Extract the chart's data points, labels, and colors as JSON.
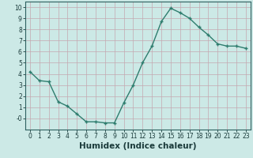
{
  "x": [
    0,
    1,
    2,
    3,
    4,
    5,
    6,
    7,
    8,
    9,
    10,
    11,
    12,
    13,
    14,
    15,
    16,
    17,
    18,
    19,
    20,
    21,
    22,
    23
  ],
  "y": [
    4.2,
    3.4,
    3.3,
    1.5,
    1.1,
    0.4,
    -0.3,
    -0.3,
    -0.4,
    -0.4,
    1.4,
    3.0,
    5.0,
    6.5,
    8.7,
    9.9,
    9.5,
    9.0,
    8.2,
    7.5,
    6.7,
    6.5,
    6.5,
    6.3
  ],
  "line_color": "#2e7d6e",
  "marker": "+",
  "marker_size": 3.5,
  "bg_color": "#cce9e6",
  "grid_color": "#c4a8b0",
  "xlabel": "Humidex (Indice chaleur)",
  "xlim": [
    -0.5,
    23.5
  ],
  "ylim": [
    -1.0,
    10.5
  ],
  "yticks": [
    0,
    1,
    2,
    3,
    4,
    5,
    6,
    7,
    8,
    9,
    10
  ],
  "ytick_labels": [
    "-0",
    "1",
    "2",
    "3",
    "4",
    "5",
    "6",
    "7",
    "8",
    "9",
    "10"
  ],
  "xticks": [
    0,
    1,
    2,
    3,
    4,
    5,
    6,
    7,
    8,
    9,
    10,
    11,
    12,
    13,
    14,
    15,
    16,
    17,
    18,
    19,
    20,
    21,
    22,
    23
  ],
  "tick_label_size": 5.5,
  "xlabel_size": 7.5,
  "line_width": 1.0,
  "spine_color": "#2e6060"
}
